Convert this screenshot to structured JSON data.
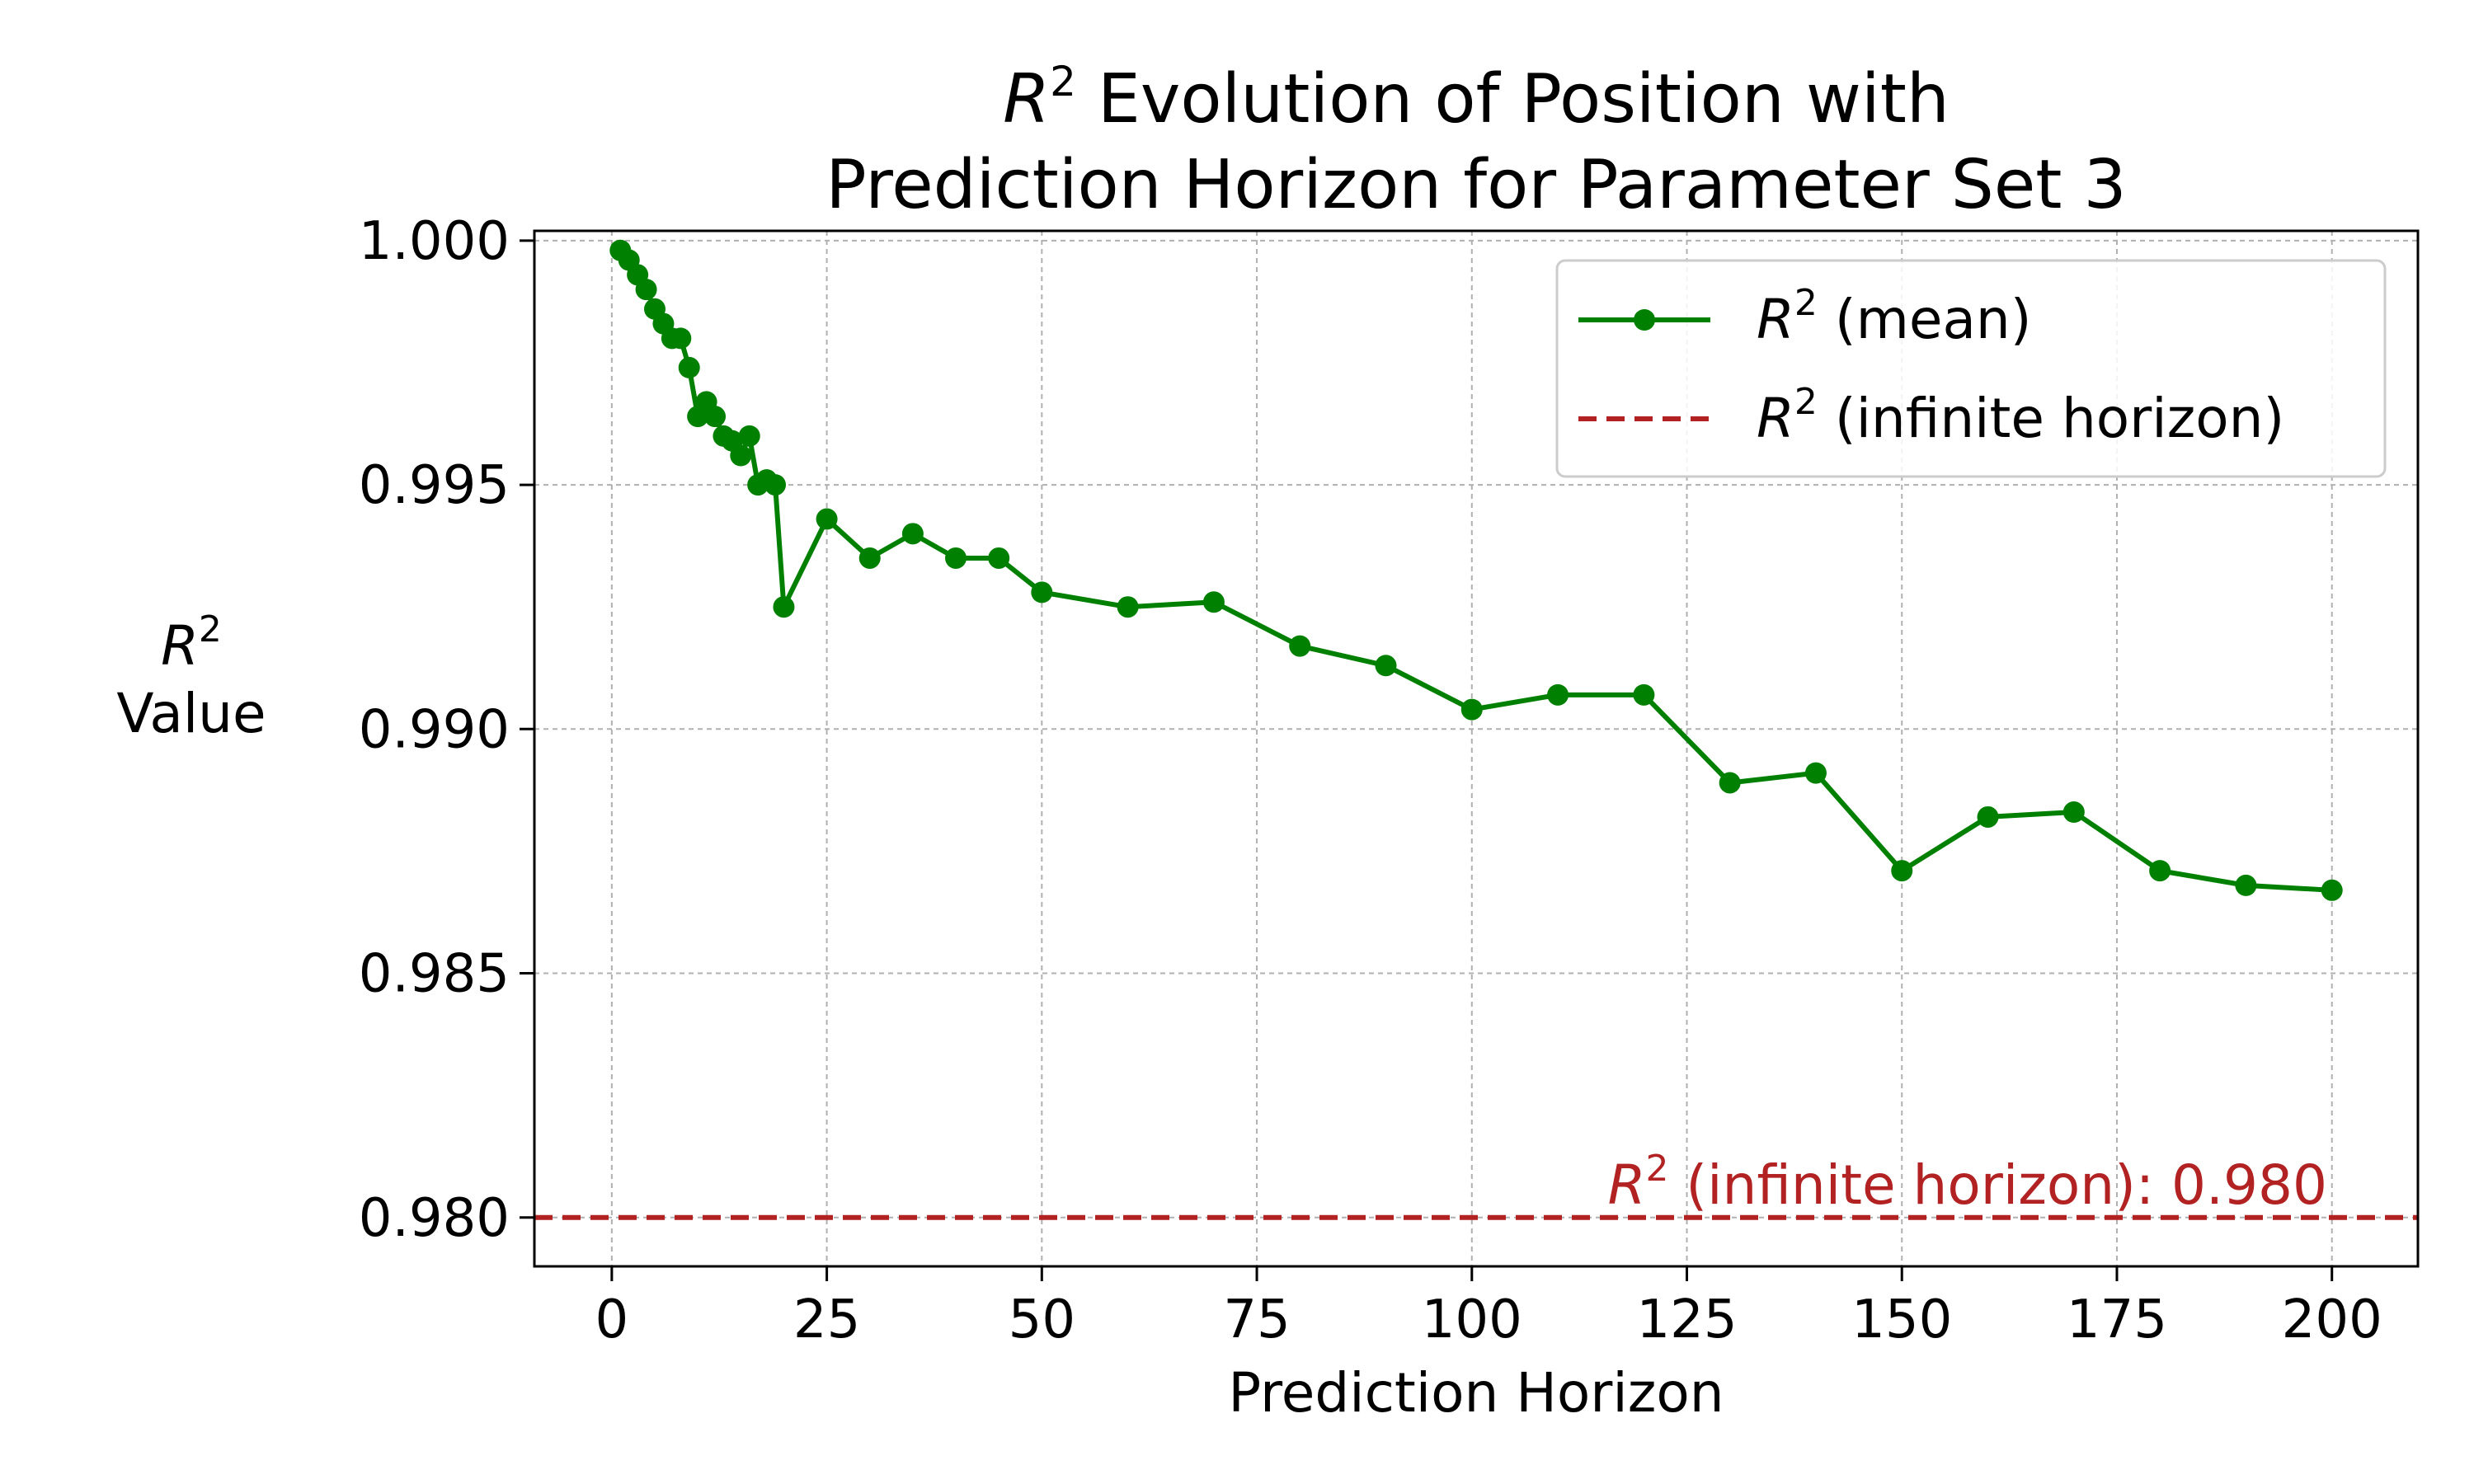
{
  "chart_data": {
    "type": "line",
    "title_line1_prefix": "R",
    "title_line1_sup": "2",
    "title_line1_rest": " Evolution of Position with",
    "title_line2": "Prediction Horizon for Parameter Set 3",
    "xlabel": "Prediction Horizon",
    "ylabel_var": "R",
    "ylabel_sup": "2",
    "ylabel_line2": "Value",
    "xlim": [
      -9,
      210
    ],
    "ylim": [
      0.979,
      1.0002
    ],
    "xticks": [
      0,
      25,
      50,
      75,
      100,
      125,
      150,
      175,
      200
    ],
    "xtick_labels": [
      "0",
      "25",
      "50",
      "75",
      "100",
      "125",
      "150",
      "175",
      "200"
    ],
    "yticks": [
      0.98,
      0.985,
      0.99,
      0.995,
      1.0
    ],
    "ytick_labels": [
      "0.980",
      "0.985",
      "0.990",
      "0.995",
      "1.000"
    ],
    "grid": true,
    "legend_position": "top-right",
    "colors": {
      "mean": "#008000",
      "infinite": "#b22222",
      "grid": "#b0b0b0"
    },
    "series": [
      {
        "name_var": "R",
        "name_sup": "2",
        "name_rest": " (mean)",
        "style": "solid-markers",
        "x": [
          1,
          2,
          3,
          4,
          5,
          6,
          7,
          8,
          9,
          10,
          11,
          12,
          13,
          14,
          15,
          16,
          17,
          18,
          19,
          20,
          25,
          30,
          35,
          40,
          45,
          50,
          60,
          70,
          80,
          90,
          100,
          110,
          120,
          130,
          140,
          150,
          160,
          170,
          180,
          190,
          200
        ],
        "y": [
          0.9998,
          0.9996,
          0.9993,
          0.999,
          0.9986,
          0.9983,
          0.998,
          0.998,
          0.9974,
          0.9964,
          0.9967,
          0.9964,
          0.996,
          0.9959,
          0.9956,
          0.996,
          0.995,
          0.9951,
          0.995,
          0.9925,
          0.9943,
          0.9935,
          0.994,
          0.9935,
          0.9935,
          0.9928,
          0.9925,
          0.9926,
          0.9917,
          0.9913,
          0.9904,
          0.9907,
          0.9907,
          0.9889,
          0.9891,
          0.9871,
          0.9882,
          0.9883,
          0.9871,
          0.9868,
          0.9867
        ]
      },
      {
        "name_var": "R",
        "name_sup": "2",
        "name_rest": " (infinite horizon)",
        "style": "dashed-hline",
        "y_value": 0.98
      }
    ],
    "annotation": {
      "var": "R",
      "sup": "2",
      "text": " (infinite horizon): 0.980"
    }
  }
}
